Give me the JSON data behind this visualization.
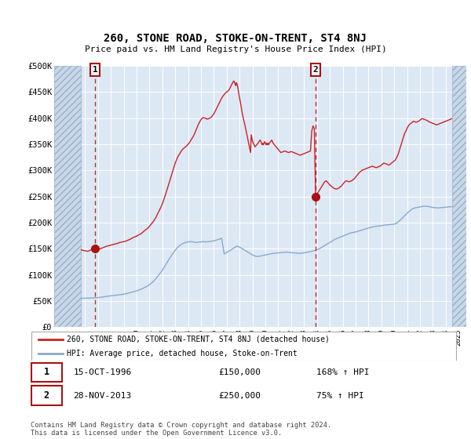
{
  "title": "260, STONE ROAD, STOKE-ON-TRENT, ST4 8NJ",
  "subtitle": "Price paid vs. HM Land Registry's House Price Index (HPI)",
  "ylim": [
    0,
    500000
  ],
  "yticks": [
    0,
    50000,
    100000,
    150000,
    200000,
    250000,
    300000,
    350000,
    400000,
    450000,
    500000
  ],
  "ytick_labels": [
    "£0",
    "£50K",
    "£100K",
    "£150K",
    "£200K",
    "£250K",
    "£300K",
    "£350K",
    "£400K",
    "£450K",
    "£500K"
  ],
  "xlim_start": 1993.6,
  "xlim_end": 2025.6,
  "hatch_left_end": 1995.7,
  "hatch_right_start": 2024.5,
  "purchase1_x": 1996.79,
  "purchase1_y": 150000,
  "purchase2_x": 2013.9,
  "purchase2_y": 250000,
  "line_color_red": "#cc2222",
  "line_color_blue": "#88aacc",
  "marker_color": "#aa1111",
  "bg_color": "#dde8f5",
  "hatch_facecolor": "#c8d8e8",
  "grid_color": "#ffffff",
  "legend_label_red": "260, STONE ROAD, STOKE-ON-TRENT, ST4 8NJ (detached house)",
  "legend_label_blue": "HPI: Average price, detached house, Stoke-on-Trent",
  "transaction1_num": "1",
  "transaction1_date": "15-OCT-1996",
  "transaction1_price": "£150,000",
  "transaction1_hpi": "168% ↑ HPI",
  "transaction2_num": "2",
  "transaction2_date": "28-NOV-2013",
  "transaction2_price": "£250,000",
  "transaction2_hpi": "75% ↑ HPI",
  "footnote": "Contains HM Land Registry data © Crown copyright and database right 2024.\nThis data is licensed under the Open Government Licence v3.0.",
  "red_data": [
    [
      1995.7,
      148000
    ],
    [
      1995.8,
      147000
    ],
    [
      1995.9,
      146500
    ],
    [
      1996.0,
      146000
    ],
    [
      1996.1,
      145500
    ],
    [
      1996.2,
      145000
    ],
    [
      1996.3,
      146000
    ],
    [
      1996.4,
      147000
    ],
    [
      1996.5,
      148000
    ],
    [
      1996.6,
      149000
    ],
    [
      1996.79,
      150000
    ],
    [
      1996.9,
      149000
    ],
    [
      1997.0,
      148500
    ],
    [
      1997.1,
      149000
    ],
    [
      1997.2,
      150000
    ],
    [
      1997.3,
      151000
    ],
    [
      1997.4,
      152000
    ],
    [
      1997.5,
      153000
    ],
    [
      1997.6,
      154000
    ],
    [
      1997.7,
      155000
    ],
    [
      1997.8,
      155500
    ],
    [
      1997.9,
      156000
    ],
    [
      1998.0,
      157000
    ],
    [
      1998.1,
      157500
    ],
    [
      1998.2,
      158000
    ],
    [
      1998.3,
      159000
    ],
    [
      1998.4,
      159500
    ],
    [
      1998.5,
      160000
    ],
    [
      1998.6,
      161000
    ],
    [
      1998.7,
      162000
    ],
    [
      1998.8,
      162500
    ],
    [
      1998.9,
      163000
    ],
    [
      1999.0,
      163500
    ],
    [
      1999.1,
      164000
    ],
    [
      1999.2,
      165000
    ],
    [
      1999.3,
      166000
    ],
    [
      1999.4,
      167000
    ],
    [
      1999.5,
      168000
    ],
    [
      1999.6,
      169500
    ],
    [
      1999.7,
      171000
    ],
    [
      1999.8,
      172000
    ],
    [
      1999.9,
      173000
    ],
    [
      2000.0,
      174000
    ],
    [
      2000.1,
      175500
    ],
    [
      2000.2,
      177000
    ],
    [
      2000.3,
      178000
    ],
    [
      2000.4,
      180000
    ],
    [
      2000.5,
      182000
    ],
    [
      2000.6,
      184000
    ],
    [
      2000.7,
      186000
    ],
    [
      2000.8,
      188000
    ],
    [
      2000.9,
      190000
    ],
    [
      2001.0,
      193000
    ],
    [
      2001.1,
      196000
    ],
    [
      2001.2,
      199000
    ],
    [
      2001.3,
      202000
    ],
    [
      2001.4,
      206000
    ],
    [
      2001.5,
      210000
    ],
    [
      2001.6,
      215000
    ],
    [
      2001.7,
      220000
    ],
    [
      2001.8,
      225000
    ],
    [
      2001.9,
      230000
    ],
    [
      2002.0,
      236000
    ],
    [
      2002.1,
      243000
    ],
    [
      2002.2,
      250000
    ],
    [
      2002.3,
      258000
    ],
    [
      2002.4,
      266000
    ],
    [
      2002.5,
      274000
    ],
    [
      2002.6,
      282000
    ],
    [
      2002.7,
      290000
    ],
    [
      2002.8,
      298000
    ],
    [
      2002.9,
      306000
    ],
    [
      2003.0,
      314000
    ],
    [
      2003.1,
      320000
    ],
    [
      2003.2,
      326000
    ],
    [
      2003.3,
      330000
    ],
    [
      2003.4,
      334000
    ],
    [
      2003.5,
      338000
    ],
    [
      2003.6,
      341000
    ],
    [
      2003.7,
      343000
    ],
    [
      2003.8,
      345000
    ],
    [
      2003.9,
      347000
    ],
    [
      2004.0,
      350000
    ],
    [
      2004.1,
      353000
    ],
    [
      2004.2,
      357000
    ],
    [
      2004.3,
      361000
    ],
    [
      2004.4,
      365000
    ],
    [
      2004.5,
      370000
    ],
    [
      2004.6,
      376000
    ],
    [
      2004.7,
      382000
    ],
    [
      2004.8,
      388000
    ],
    [
      2004.9,
      393000
    ],
    [
      2005.0,
      397000
    ],
    [
      2005.1,
      400000
    ],
    [
      2005.2,
      401000
    ],
    [
      2005.3,
      400000
    ],
    [
      2005.4,
      399000
    ],
    [
      2005.5,
      398000
    ],
    [
      2005.6,
      399000
    ],
    [
      2005.7,
      400000
    ],
    [
      2005.8,
      402000
    ],
    [
      2005.9,
      405000
    ],
    [
      2006.0,
      408000
    ],
    [
      2006.1,
      413000
    ],
    [
      2006.2,
      418000
    ],
    [
      2006.3,
      423000
    ],
    [
      2006.4,
      428000
    ],
    [
      2006.5,
      433000
    ],
    [
      2006.6,
      438000
    ],
    [
      2006.7,
      442000
    ],
    [
      2006.8,
      445000
    ],
    [
      2006.9,
      448000
    ],
    [
      2007.0,
      450000
    ],
    [
      2007.1,
      452000
    ],
    [
      2007.2,
      455000
    ],
    [
      2007.3,
      460000
    ],
    [
      2007.4,
      465000
    ],
    [
      2007.5,
      470000
    ],
    [
      2007.55,
      471000
    ],
    [
      2007.6,
      468000
    ],
    [
      2007.65,
      465000
    ],
    [
      2007.7,
      462000
    ],
    [
      2007.75,
      468000
    ],
    [
      2007.8,
      465000
    ],
    [
      2007.85,
      460000
    ],
    [
      2007.9,
      452000
    ],
    [
      2007.95,
      445000
    ],
    [
      2008.0,
      438000
    ],
    [
      2008.1,
      425000
    ],
    [
      2008.2,
      410000
    ],
    [
      2008.3,
      398000
    ],
    [
      2008.4,
      388000
    ],
    [
      2008.45,
      382000
    ],
    [
      2008.5,
      376000
    ],
    [
      2008.55,
      370000
    ],
    [
      2008.6,
      364000
    ],
    [
      2008.65,
      358000
    ],
    [
      2008.7,
      352000
    ],
    [
      2008.75,
      346000
    ],
    [
      2008.8,
      340000
    ],
    [
      2008.85,
      334000
    ],
    [
      2008.9,
      368000
    ],
    [
      2008.95,
      362000
    ],
    [
      2009.0,
      356000
    ],
    [
      2009.1,
      350000
    ],
    [
      2009.2,
      345000
    ],
    [
      2009.3,
      348000
    ],
    [
      2009.4,
      351000
    ],
    [
      2009.5,
      355000
    ],
    [
      2009.6,
      358000
    ],
    [
      2009.65,
      355000
    ],
    [
      2009.7,
      352000
    ],
    [
      2009.75,
      349000
    ],
    [
      2009.8,
      352000
    ],
    [
      2009.85,
      349000
    ],
    [
      2009.9,
      352000
    ],
    [
      2009.95,
      355000
    ],
    [
      2010.0,
      352000
    ],
    [
      2010.05,
      349000
    ],
    [
      2010.1,
      352000
    ],
    [
      2010.15,
      349000
    ],
    [
      2010.2,
      352000
    ],
    [
      2010.25,
      349000
    ],
    [
      2010.3,
      352000
    ],
    [
      2010.4,
      355000
    ],
    [
      2010.5,
      358000
    ],
    [
      2010.55,
      355000
    ],
    [
      2010.6,
      352000
    ],
    [
      2010.7,
      349000
    ],
    [
      2010.8,
      346000
    ],
    [
      2010.9,
      343000
    ],
    [
      2011.0,
      340000
    ],
    [
      2011.1,
      337000
    ],
    [
      2011.2,
      334000
    ],
    [
      2011.3,
      335000
    ],
    [
      2011.4,
      336000
    ],
    [
      2011.5,
      337000
    ],
    [
      2011.6,
      336000
    ],
    [
      2011.7,
      335000
    ],
    [
      2011.8,
      334000
    ],
    [
      2011.9,
      335000
    ],
    [
      2012.0,
      336000
    ],
    [
      2012.1,
      335000
    ],
    [
      2012.2,
      334000
    ],
    [
      2012.3,
      333000
    ],
    [
      2012.4,
      332000
    ],
    [
      2012.5,
      331000
    ],
    [
      2012.6,
      330000
    ],
    [
      2012.7,
      329000
    ],
    [
      2012.8,
      330000
    ],
    [
      2012.9,
      331000
    ],
    [
      2013.0,
      332000
    ],
    [
      2013.1,
      333000
    ],
    [
      2013.2,
      334000
    ],
    [
      2013.3,
      335000
    ],
    [
      2013.4,
      336000
    ],
    [
      2013.5,
      337000
    ],
    [
      2013.6,
      375000
    ],
    [
      2013.7,
      385000
    ],
    [
      2013.8,
      380000
    ],
    [
      2013.9,
      250000
    ],
    [
      2013.95,
      252000
    ],
    [
      2014.0,
      255000
    ],
    [
      2014.1,
      258000
    ],
    [
      2014.2,
      262000
    ],
    [
      2014.3,
      266000
    ],
    [
      2014.4,
      270000
    ],
    [
      2014.5,
      274000
    ],
    [
      2014.6,
      278000
    ],
    [
      2014.7,
      280000
    ],
    [
      2014.8,
      278000
    ],
    [
      2014.9,
      275000
    ],
    [
      2015.0,
      272000
    ],
    [
      2015.1,
      270000
    ],
    [
      2015.2,
      268000
    ],
    [
      2015.3,
      266000
    ],
    [
      2015.4,
      265000
    ],
    [
      2015.5,
      264000
    ],
    [
      2015.6,
      265000
    ],
    [
      2015.7,
      266000
    ],
    [
      2015.8,
      268000
    ],
    [
      2015.9,
      270000
    ],
    [
      2016.0,
      273000
    ],
    [
      2016.1,
      276000
    ],
    [
      2016.2,
      279000
    ],
    [
      2016.3,
      280000
    ],
    [
      2016.4,
      279000
    ],
    [
      2016.5,
      278000
    ],
    [
      2016.6,
      279000
    ],
    [
      2016.7,
      280000
    ],
    [
      2016.8,
      282000
    ],
    [
      2016.9,
      284000
    ],
    [
      2017.0,
      287000
    ],
    [
      2017.1,
      290000
    ],
    [
      2017.2,
      293000
    ],
    [
      2017.3,
      296000
    ],
    [
      2017.4,
      298000
    ],
    [
      2017.5,
      300000
    ],
    [
      2017.6,
      301000
    ],
    [
      2017.7,
      302000
    ],
    [
      2017.8,
      303000
    ],
    [
      2017.9,
      304000
    ],
    [
      2018.0,
      305000
    ],
    [
      2018.1,
      306000
    ],
    [
      2018.2,
      307000
    ],
    [
      2018.3,
      308000
    ],
    [
      2018.4,
      307000
    ],
    [
      2018.5,
      306000
    ],
    [
      2018.6,
      305000
    ],
    [
      2018.7,
      306000
    ],
    [
      2018.8,
      307000
    ],
    [
      2018.9,
      308000
    ],
    [
      2019.0,
      310000
    ],
    [
      2019.1,
      312000
    ],
    [
      2019.2,
      314000
    ],
    [
      2019.3,
      313000
    ],
    [
      2019.4,
      312000
    ],
    [
      2019.5,
      311000
    ],
    [
      2019.6,
      310000
    ],
    [
      2019.7,
      312000
    ],
    [
      2019.8,
      314000
    ],
    [
      2019.9,
      316000
    ],
    [
      2020.0,
      318000
    ],
    [
      2020.1,
      320000
    ],
    [
      2020.2,
      325000
    ],
    [
      2020.3,
      330000
    ],
    [
      2020.4,
      338000
    ],
    [
      2020.5,
      346000
    ],
    [
      2020.6,
      354000
    ],
    [
      2020.7,
      362000
    ],
    [
      2020.8,
      370000
    ],
    [
      2020.9,
      375000
    ],
    [
      2021.0,
      380000
    ],
    [
      2021.1,
      385000
    ],
    [
      2021.2,
      388000
    ],
    [
      2021.3,
      390000
    ],
    [
      2021.4,
      392000
    ],
    [
      2021.5,
      394000
    ],
    [
      2021.6,
      393000
    ],
    [
      2021.7,
      392000
    ],
    [
      2021.8,
      393000
    ],
    [
      2021.9,
      394000
    ],
    [
      2022.0,
      396000
    ],
    [
      2022.1,
      398000
    ],
    [
      2022.2,
      399000
    ],
    [
      2022.3,
      398000
    ],
    [
      2022.4,
      397000
    ],
    [
      2022.5,
      396000
    ],
    [
      2022.6,
      395000
    ],
    [
      2022.7,
      393000
    ],
    [
      2022.8,
      392000
    ],
    [
      2022.9,
      391000
    ],
    [
      2023.0,
      390000
    ],
    [
      2023.1,
      389000
    ],
    [
      2023.2,
      388000
    ],
    [
      2023.3,
      387000
    ],
    [
      2023.4,
      388000
    ],
    [
      2023.5,
      389000
    ],
    [
      2023.6,
      390000
    ],
    [
      2023.7,
      391000
    ],
    [
      2023.8,
      392000
    ],
    [
      2023.9,
      393000
    ],
    [
      2024.0,
      394000
    ],
    [
      2024.1,
      395000
    ],
    [
      2024.2,
      396000
    ],
    [
      2024.3,
      397000
    ],
    [
      2024.4,
      398000
    ],
    [
      2024.45,
      399000
    ]
  ],
  "blue_data": [
    [
      1995.7,
      55000
    ],
    [
      1995.8,
      55200
    ],
    [
      1995.9,
      55000
    ],
    [
      1996.0,
      55200
    ],
    [
      1996.1,
      55400
    ],
    [
      1996.2,
      55600
    ],
    [
      1996.3,
      55400
    ],
    [
      1996.4,
      55500
    ],
    [
      1996.5,
      55700
    ],
    [
      1996.6,
      55900
    ],
    [
      1996.79,
      56000
    ],
    [
      1996.9,
      56200
    ],
    [
      1997.0,
      56400
    ],
    [
      1997.2,
      57000
    ],
    [
      1997.4,
      57800
    ],
    [
      1997.6,
      58500
    ],
    [
      1997.8,
      59200
    ],
    [
      1998.0,
      59800
    ],
    [
      1998.2,
      60400
    ],
    [
      1998.4,
      61000
    ],
    [
      1998.6,
      61600
    ],
    [
      1998.8,
      62200
    ],
    [
      1999.0,
      63000
    ],
    [
      1999.2,
      64000
    ],
    [
      1999.4,
      65200
    ],
    [
      1999.6,
      66500
    ],
    [
      1999.8,
      67800
    ],
    [
      2000.0,
      69200
    ],
    [
      2000.2,
      71000
    ],
    [
      2000.4,
      73000
    ],
    [
      2000.6,
      75500
    ],
    [
      2000.8,
      78000
    ],
    [
      2001.0,
      81000
    ],
    [
      2001.2,
      85000
    ],
    [
      2001.4,
      90000
    ],
    [
      2001.6,
      96000
    ],
    [
      2001.8,
      102000
    ],
    [
      2002.0,
      109000
    ],
    [
      2002.2,
      117000
    ],
    [
      2002.4,
      125000
    ],
    [
      2002.6,
      133000
    ],
    [
      2002.8,
      140000
    ],
    [
      2003.0,
      147000
    ],
    [
      2003.2,
      153000
    ],
    [
      2003.4,
      157000
    ],
    [
      2003.6,
      160000
    ],
    [
      2003.8,
      162000
    ],
    [
      2004.0,
      163000
    ],
    [
      2004.2,
      163500
    ],
    [
      2004.4,
      163000
    ],
    [
      2004.6,
      162000
    ],
    [
      2004.8,
      162500
    ],
    [
      2005.0,
      163000
    ],
    [
      2005.2,
      163500
    ],
    [
      2005.4,
      163000
    ],
    [
      2005.6,
      163500
    ],
    [
      2005.8,
      164000
    ],
    [
      2006.0,
      165000
    ],
    [
      2006.2,
      166500
    ],
    [
      2006.4,
      168000
    ],
    [
      2006.6,
      170000
    ],
    [
      2006.8,
      140000
    ],
    [
      2007.0,
      143000
    ],
    [
      2007.2,
      146000
    ],
    [
      2007.4,
      149000
    ],
    [
      2007.6,
      152000
    ],
    [
      2007.8,
      155000
    ],
    [
      2008.0,
      153000
    ],
    [
      2008.2,
      150000
    ],
    [
      2008.4,
      147000
    ],
    [
      2008.6,
      144000
    ],
    [
      2008.8,
      141000
    ],
    [
      2009.0,
      138000
    ],
    [
      2009.2,
      136000
    ],
    [
      2009.4,
      135000
    ],
    [
      2009.6,
      136000
    ],
    [
      2009.8,
      137000
    ],
    [
      2010.0,
      138000
    ],
    [
      2010.2,
      139000
    ],
    [
      2010.4,
      140000
    ],
    [
      2010.6,
      141000
    ],
    [
      2010.8,
      141500
    ],
    [
      2011.0,
      142000
    ],
    [
      2011.2,
      142500
    ],
    [
      2011.4,
      143000
    ],
    [
      2011.6,
      143500
    ],
    [
      2011.8,
      143000
    ],
    [
      2012.0,
      142500
    ],
    [
      2012.2,
      142000
    ],
    [
      2012.4,
      141500
    ],
    [
      2012.6,
      141000
    ],
    [
      2012.8,
      141500
    ],
    [
      2013.0,
      142000
    ],
    [
      2013.2,
      143000
    ],
    [
      2013.4,
      144000
    ],
    [
      2013.6,
      145000
    ],
    [
      2013.9,
      147000
    ],
    [
      2014.0,
      148000
    ],
    [
      2014.2,
      150000
    ],
    [
      2014.4,
      153000
    ],
    [
      2014.6,
      156000
    ],
    [
      2014.8,
      159000
    ],
    [
      2015.0,
      162000
    ],
    [
      2015.2,
      165000
    ],
    [
      2015.4,
      168000
    ],
    [
      2015.6,
      170000
    ],
    [
      2015.8,
      172000
    ],
    [
      2016.0,
      174000
    ],
    [
      2016.2,
      176000
    ],
    [
      2016.4,
      178000
    ],
    [
      2016.6,
      180000
    ],
    [
      2016.8,
      181000
    ],
    [
      2017.0,
      182000
    ],
    [
      2017.2,
      183500
    ],
    [
      2017.4,
      185000
    ],
    [
      2017.6,
      186500
    ],
    [
      2017.8,
      188000
    ],
    [
      2018.0,
      189500
    ],
    [
      2018.2,
      191000
    ],
    [
      2018.4,
      192000
    ],
    [
      2018.6,
      193000
    ],
    [
      2018.8,
      193500
    ],
    [
      2019.0,
      194000
    ],
    [
      2019.2,
      195000
    ],
    [
      2019.4,
      195500
    ],
    [
      2019.6,
      196000
    ],
    [
      2019.8,
      196500
    ],
    [
      2020.0,
      197000
    ],
    [
      2020.2,
      199000
    ],
    [
      2020.4,
      203000
    ],
    [
      2020.6,
      208000
    ],
    [
      2020.8,
      213000
    ],
    [
      2021.0,
      218000
    ],
    [
      2021.2,
      222000
    ],
    [
      2021.4,
      226000
    ],
    [
      2021.6,
      228000
    ],
    [
      2021.8,
      229000
    ],
    [
      2022.0,
      230000
    ],
    [
      2022.2,
      231000
    ],
    [
      2022.4,
      231500
    ],
    [
      2022.6,
      231000
    ],
    [
      2022.8,
      230000
    ],
    [
      2023.0,
      229000
    ],
    [
      2023.2,
      228500
    ],
    [
      2023.4,
      228000
    ],
    [
      2023.6,
      228500
    ],
    [
      2023.8,
      229000
    ],
    [
      2024.0,
      229500
    ],
    [
      2024.2,
      230000
    ],
    [
      2024.45,
      230500
    ]
  ]
}
